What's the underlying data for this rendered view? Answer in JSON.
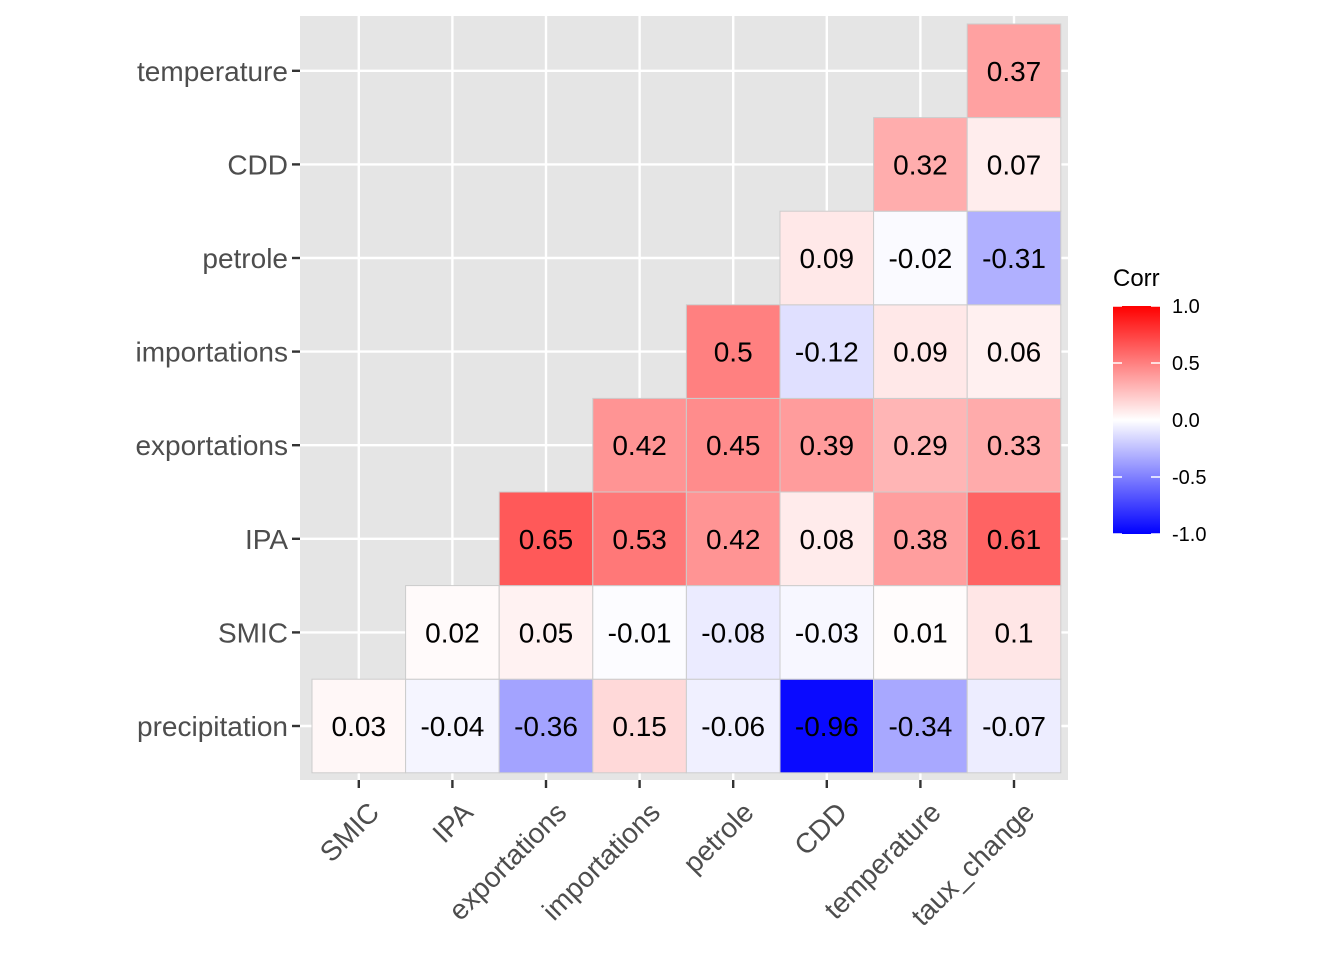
{
  "chart_data": {
    "type": "heatmap",
    "x_categories": [
      "SMIC",
      "IPA",
      "exportations",
      "importations",
      "petrole",
      "CDD",
      "temperature",
      "taux_change"
    ],
    "y_categories": [
      "precipitation",
      "SMIC",
      "IPA",
      "exportations",
      "importations",
      "petrole",
      "CDD",
      "temperature"
    ],
    "values": [
      [
        0.03,
        -0.04,
        -0.36,
        0.15,
        -0.06,
        -0.96,
        -0.34,
        -0.07
      ],
      [
        null,
        0.02,
        0.05,
        -0.01,
        -0.08,
        -0.03,
        0.01,
        0.1
      ],
      [
        null,
        null,
        0.65,
        0.53,
        0.42,
        0.08,
        0.38,
        0.61
      ],
      [
        null,
        null,
        null,
        0.42,
        0.45,
        0.39,
        0.29,
        0.33
      ],
      [
        null,
        null,
        null,
        null,
        0.5,
        -0.12,
        0.09,
        0.06
      ],
      [
        null,
        null,
        null,
        null,
        null,
        0.09,
        -0.02,
        -0.31
      ],
      [
        null,
        null,
        null,
        null,
        null,
        null,
        0.32,
        0.07
      ],
      [
        null,
        null,
        null,
        null,
        null,
        null,
        null,
        0.37
      ]
    ],
    "labels": [
      [
        "0.03",
        "-0.04",
        "-0.36",
        "0.15",
        "-0.06",
        "-0.96",
        "-0.34",
        "-0.07"
      ],
      [
        null,
        "0.02",
        "0.05",
        "-0.01",
        "-0.08",
        "-0.03",
        "0.01",
        "0.1"
      ],
      [
        null,
        null,
        "0.65",
        "0.53",
        "0.42",
        "0.08",
        "0.38",
        "0.61"
      ],
      [
        null,
        null,
        null,
        "0.42",
        "0.45",
        "0.39",
        "0.29",
        "0.33"
      ],
      [
        null,
        null,
        null,
        null,
        "0.5",
        "-0.12",
        "0.09",
        "0.06"
      ],
      [
        null,
        null,
        null,
        null,
        null,
        "0.09",
        "-0.02",
        "-0.31"
      ],
      [
        null,
        null,
        null,
        null,
        null,
        null,
        "0.32",
        "0.07"
      ],
      [
        null,
        null,
        null,
        null,
        null,
        null,
        null,
        "0.37"
      ]
    ],
    "legend": {
      "title": "Corr",
      "position": "right",
      "range": [
        -1,
        1
      ],
      "ticks": [
        1.0,
        0.5,
        0.0,
        -0.5,
        -1.0
      ],
      "tick_labels": [
        "1.0",
        "0.5",
        "0.0",
        "-0.5",
        "-1.0"
      ]
    },
    "colors": {
      "high": "#FF0000",
      "mid": "#FFFFFF",
      "low": "#0000FF",
      "panel_background": "#E5E5E5",
      "grid": "#FFFFFF",
      "tile_border": "#CCCCCC"
    },
    "grid": true,
    "xlabel": "",
    "ylabel": "",
    "x_tick_rotation": 45
  }
}
